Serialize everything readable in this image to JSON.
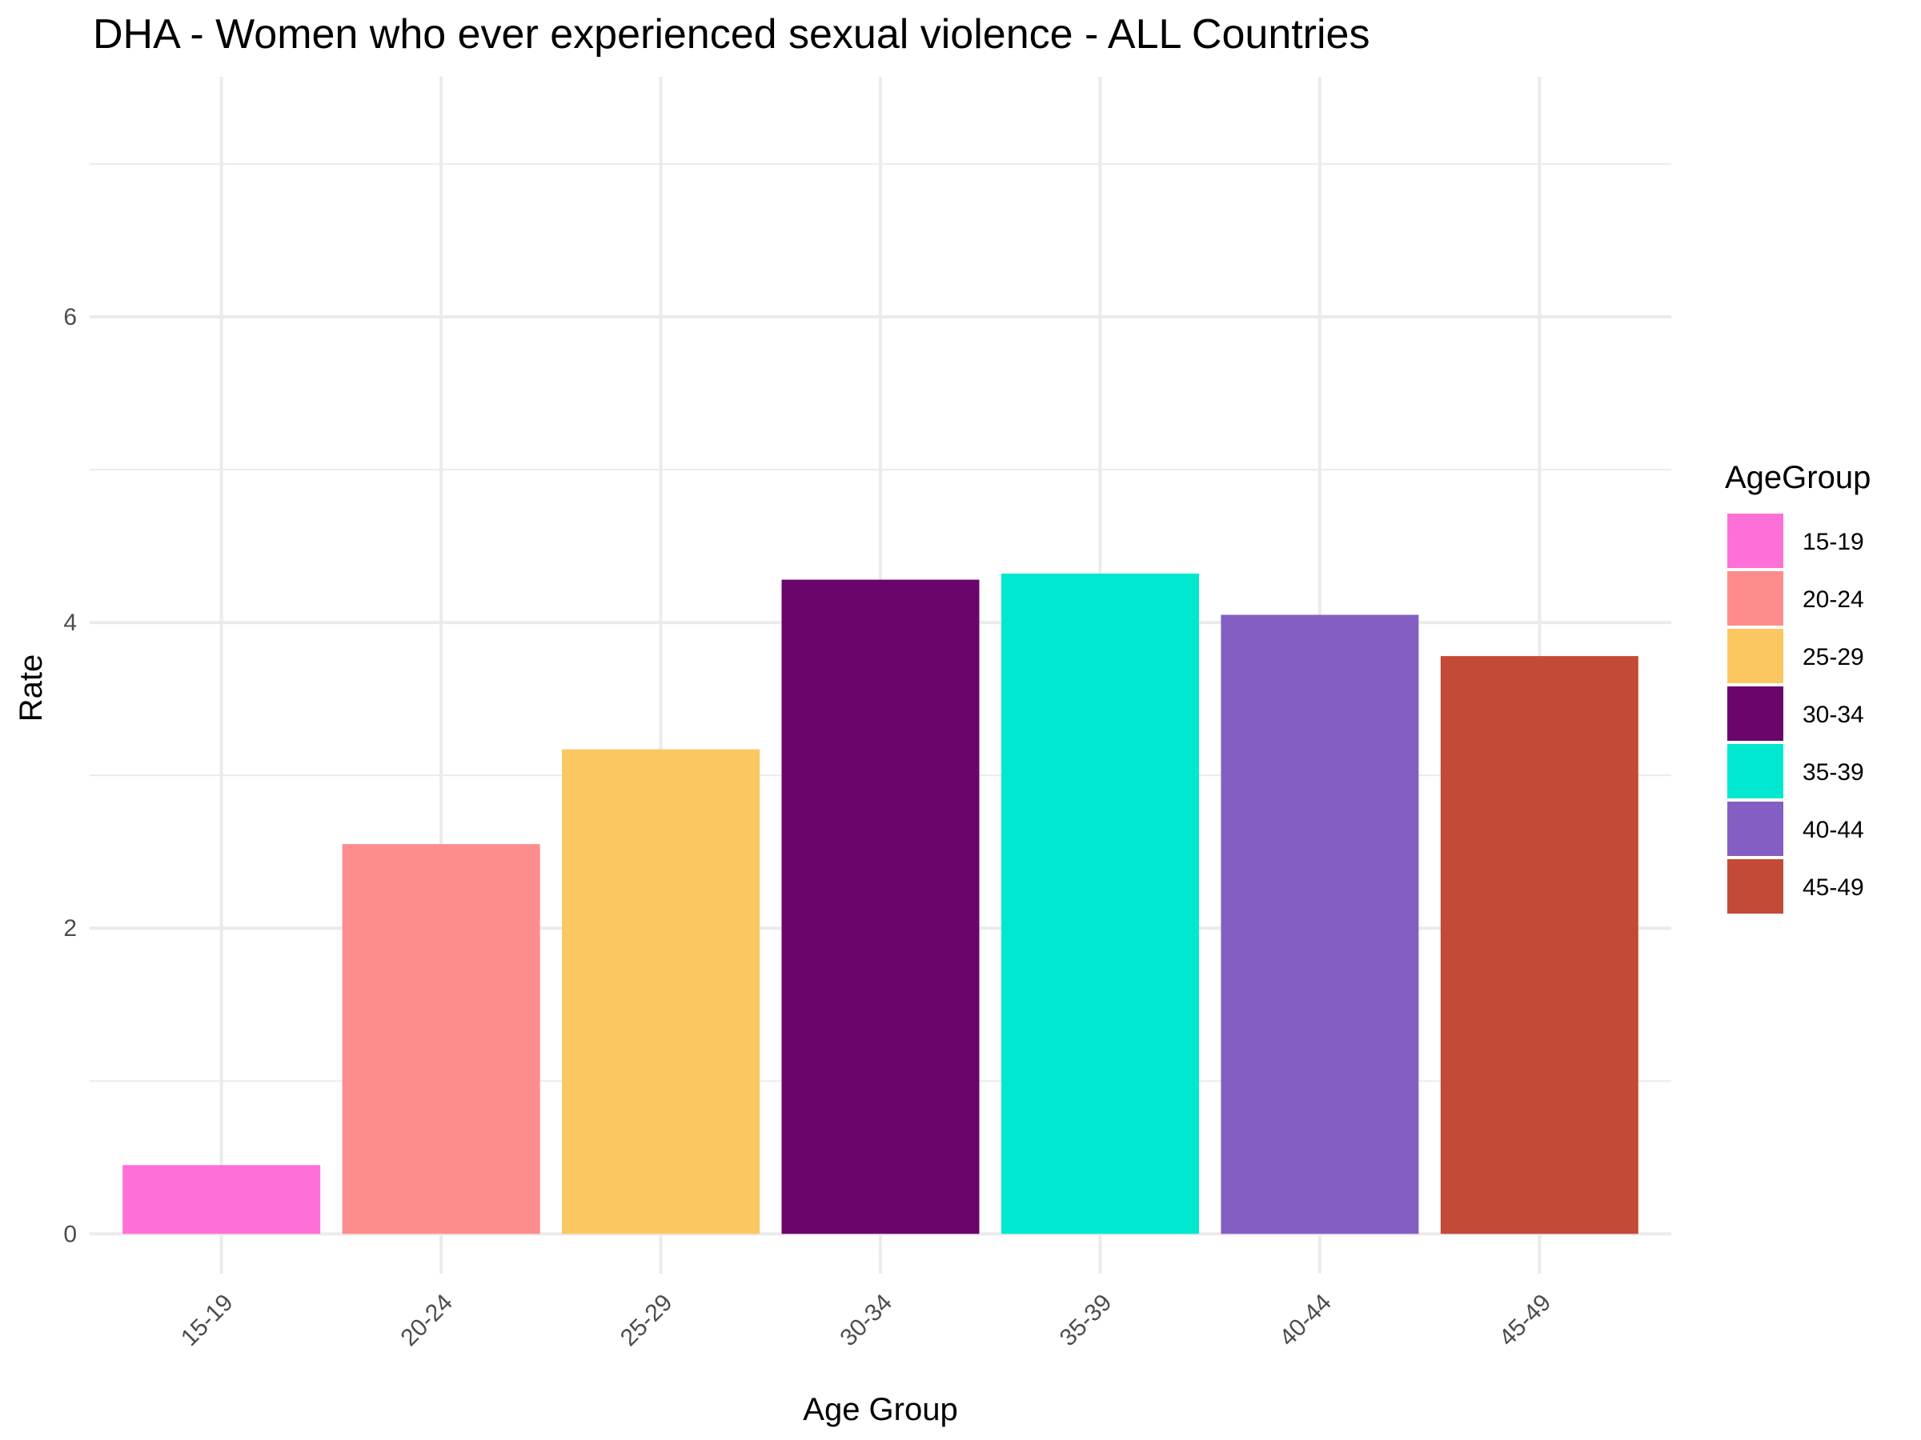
{
  "chart_data": {
    "type": "bar",
    "title": "DHA - Women who ever experienced sexual violence - ALL Countries",
    "xlabel": "Age Group",
    "ylabel": "Rate",
    "categories": [
      "15-19",
      "20-24",
      "25-29",
      "30-34",
      "35-39",
      "40-44",
      "45-49"
    ],
    "values": [
      0.45,
      2.55,
      3.17,
      4.28,
      4.32,
      4.05,
      3.78
    ],
    "colors": [
      "#FF6FD8",
      "#FF8C8C",
      "#FCC761",
      "#6A056C",
      "#00E8D0",
      "#845EC2",
      "#C34A36"
    ],
    "ylim": [
      -0.26,
      7.57
    ],
    "yticks": [
      0,
      2,
      4,
      6
    ],
    "grid": true,
    "legend": {
      "title": "AgeGroup",
      "position": "right",
      "entries": [
        "15-19",
        "20-24",
        "25-29",
        "30-34",
        "35-39",
        "40-44",
        "45-49"
      ]
    }
  }
}
